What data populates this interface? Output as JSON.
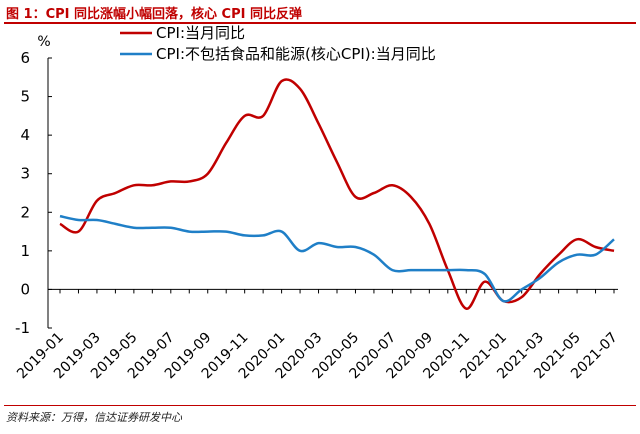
{
  "figure": {
    "title": "图 1：CPI 同比涨幅小幅回落，核心 CPI 同比反弹",
    "source": "资料来源：万得，信达证券研发中心",
    "accent_color": "#c00000"
  },
  "chart_data": {
    "type": "line",
    "ylabel": "%",
    "ylim": [
      -1,
      6
    ],
    "yticks": [
      -1,
      0,
      1,
      2,
      3,
      4,
      5,
      6
    ],
    "grid": false,
    "legend_position": "top-center",
    "x": [
      "2019-01",
      "2019-02",
      "2019-03",
      "2019-04",
      "2019-05",
      "2019-06",
      "2019-07",
      "2019-08",
      "2019-09",
      "2019-10",
      "2019-11",
      "2019-12",
      "2020-01",
      "2020-02",
      "2020-03",
      "2020-04",
      "2020-05",
      "2020-06",
      "2020-07",
      "2020-08",
      "2020-09",
      "2020-10",
      "2020-11",
      "2020-12",
      "2021-01",
      "2021-02",
      "2021-03",
      "2021-04",
      "2021-05",
      "2021-06",
      "2021-07"
    ],
    "xtick_labels": [
      "2019-01",
      "2019-03",
      "2019-05",
      "2019-07",
      "2019-09",
      "2019-11",
      "2020-01",
      "2020-03",
      "2020-05",
      "2020-07",
      "2020-09",
      "2020-11",
      "2021-01",
      "2021-03",
      "2021-05",
      "2021-07"
    ],
    "series": [
      {
        "name": "CPI:当月同比",
        "color": "#c00000",
        "values": [
          1.7,
          1.5,
          2.3,
          2.5,
          2.7,
          2.7,
          2.8,
          2.8,
          3.0,
          3.8,
          4.5,
          4.5,
          5.4,
          5.2,
          4.3,
          3.3,
          2.4,
          2.5,
          2.7,
          2.4,
          1.7,
          0.5,
          -0.5,
          0.2,
          -0.3,
          -0.2,
          0.4,
          0.9,
          1.3,
          1.1,
          1.0
        ]
      },
      {
        "name": "CPI:不包括食品和能源(核心CPI):当月同比",
        "color": "#1f7fc7",
        "values": [
          1.9,
          1.8,
          1.8,
          1.7,
          1.6,
          1.6,
          1.6,
          1.5,
          1.5,
          1.5,
          1.4,
          1.4,
          1.5,
          1.0,
          1.2,
          1.1,
          1.1,
          0.9,
          0.5,
          0.5,
          0.5,
          0.5,
          0.5,
          0.4,
          -0.3,
          0.0,
          0.3,
          0.7,
          0.9,
          0.9,
          1.3
        ]
      }
    ]
  }
}
